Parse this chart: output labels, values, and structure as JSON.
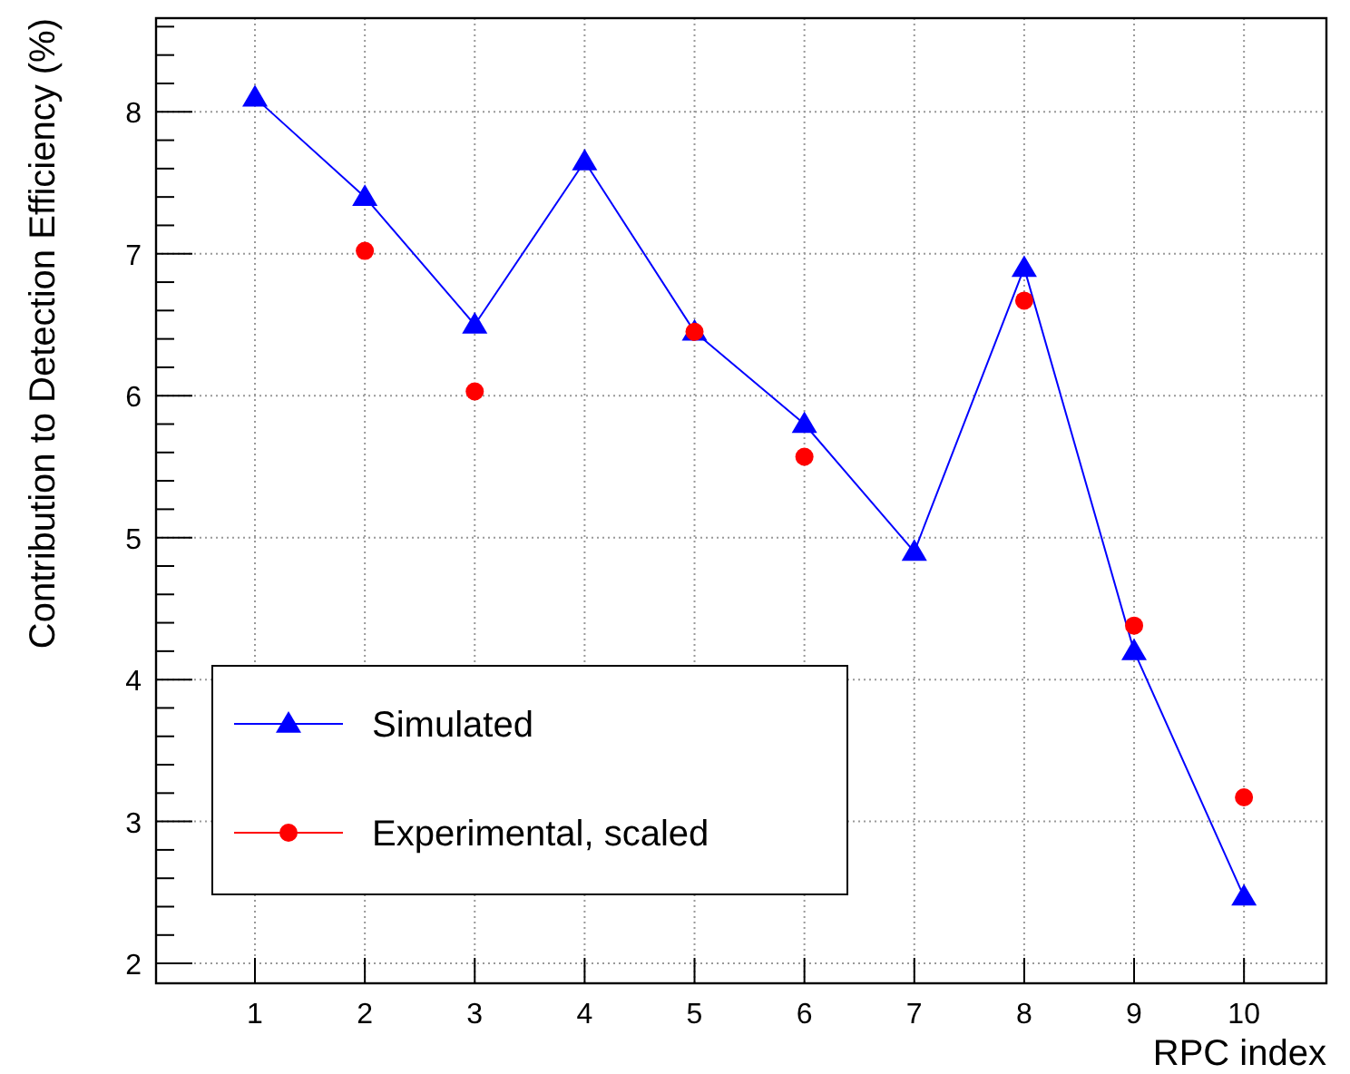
{
  "chart_data": {
    "type": "line",
    "xlabel": "RPC index",
    "ylabel": "Contribution to Detection Efficiency (%)",
    "x": [
      1,
      2,
      3,
      4,
      5,
      6,
      7,
      8,
      9,
      10
    ],
    "xlim": [
      0.1,
      10.75
    ],
    "xticks": [
      1,
      2,
      3,
      4,
      5,
      6,
      7,
      8,
      9,
      10
    ],
    "ylim": [
      1.86,
      8.66
    ],
    "yticks": [
      2,
      {
        "value": 2.2,
        "label": null
      },
      {
        "value": 2.4,
        "label": null
      },
      {
        "value": 2.6,
        "label": null
      },
      {
        "value": 2.8,
        "label": null
      },
      3,
      {
        "value": 3.2,
        "label": null
      },
      {
        "value": 3.4,
        "label": null
      },
      {
        "value": 3.6,
        "label": null
      },
      {
        "value": 3.8,
        "label": null
      },
      4,
      {
        "value": 4.2,
        "label": null
      },
      {
        "value": 4.4,
        "label": null
      },
      {
        "value": 4.6,
        "label": null
      },
      {
        "value": 4.8,
        "label": null
      },
      5,
      {
        "value": 5.2,
        "label": null
      },
      {
        "value": 5.4,
        "label": null
      },
      {
        "value": 5.6,
        "label": null
      },
      {
        "value": 5.8,
        "label": null
      },
      6,
      {
        "value": 6.2,
        "label": null
      },
      {
        "value": 6.4,
        "label": null
      },
      {
        "value": 6.6,
        "label": null
      },
      {
        "value": 6.8,
        "label": null
      },
      7,
      {
        "value": 7.2,
        "label": null
      },
      {
        "value": 7.4,
        "label": null
      },
      {
        "value": 7.6,
        "label": null
      },
      {
        "value": 7.8,
        "label": null
      },
      8,
      {
        "value": 8.2,
        "label": null
      },
      {
        "value": 8.4,
        "label": null
      },
      {
        "value": 8.6,
        "label": null
      }
    ],
    "grid": true,
    "legend": "bottom left",
    "series": [
      {
        "name": "Simulated",
        "marker": "triangle",
        "color": "#0000ff",
        "values": [
          8.1,
          7.4,
          6.5,
          7.65,
          6.45,
          5.8,
          4.9,
          6.9,
          4.2,
          2.47
        ]
      },
      {
        "name": "Experimental, scaled",
        "type": "scatter",
        "marker": "circle",
        "color": "#ff0000",
        "values": [
          null,
          7.02,
          6.03,
          null,
          6.45,
          5.57,
          null,
          6.67,
          4.38,
          3.17
        ]
      }
    ]
  }
}
